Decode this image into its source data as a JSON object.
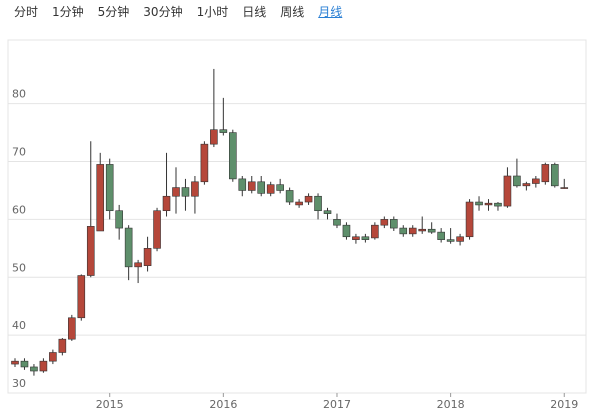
{
  "tabs": {
    "items": [
      "分时",
      "1分钟",
      "5分钟",
      "30分钟",
      "1小时",
      "日线",
      "周线",
      "月线"
    ],
    "active": 7
  },
  "chart_data": {
    "type": "candlestick",
    "categories": [
      null,
      null,
      null,
      null,
      null,
      null,
      null,
      null,
      null,
      null,
      "2015",
      null,
      null,
      null,
      null,
      null,
      null,
      null,
      null,
      null,
      null,
      null,
      "2016",
      null,
      null,
      null,
      null,
      null,
      null,
      null,
      null,
      null,
      null,
      null,
      "2017",
      null,
      null,
      null,
      null,
      null,
      null,
      null,
      null,
      null,
      null,
      null,
      "2018",
      null,
      null,
      null,
      null,
      null,
      null,
      null,
      null,
      null,
      null,
      null,
      "2019"
    ],
    "open": [
      35.0,
      35.5,
      34.5,
      33.8,
      35.5,
      37.0,
      39.3,
      43.0,
      50.3,
      58.0,
      69.5,
      61.5,
      58.5,
      51.8,
      52.0,
      55.0,
      61.5,
      64.0,
      65.5,
      64.0,
      66.5,
      73.0,
      75.5,
      75.0,
      67.0,
      65.0,
      66.5,
      64.5,
      66.0,
      65.0,
      62.5,
      63.0,
      64.0,
      61.5,
      60.0,
      59.0,
      56.5,
      57.0,
      56.8,
      59.0,
      60.0,
      58.5,
      57.5,
      58.0,
      58.3,
      57.8,
      56.5,
      56.2,
      57.0,
      63.0,
      62.5,
      62.8,
      62.3,
      67.5,
      65.8,
      66.2,
      66.5,
      69.5,
      65.5
    ],
    "high": [
      36.0,
      36.0,
      35.0,
      36.0,
      37.5,
      39.5,
      43.5,
      50.5,
      73.5,
      71.5,
      70.5,
      62.5,
      59.0,
      53.0,
      57.0,
      62.0,
      71.5,
      69.0,
      67.0,
      67.5,
      73.5,
      86.0,
      81.0,
      75.5,
      67.5,
      67.5,
      67.5,
      66.5,
      67.0,
      65.5,
      63.5,
      64.5,
      64.5,
      62.0,
      61.0,
      59.5,
      57.5,
      57.5,
      59.5,
      60.5,
      60.5,
      59.0,
      59.0,
      60.5,
      59.5,
      58.5,
      58.5,
      57.5,
      63.5,
      64.0,
      63.5,
      63.0,
      69.0,
      70.5,
      66.5,
      67.5,
      69.8,
      69.8,
      67.0
    ],
    "low": [
      34.5,
      34.0,
      33.0,
      33.5,
      35.0,
      36.5,
      39.0,
      42.5,
      50.0,
      58.0,
      60.0,
      56.5,
      49.5,
      49.0,
      51.0,
      54.5,
      60.5,
      61.0,
      61.5,
      61.0,
      66.0,
      72.5,
      74.5,
      66.5,
      64.0,
      64.5,
      64.0,
      64.0,
      64.5,
      62.5,
      62.0,
      62.5,
      60.0,
      60.0,
      58.5,
      56.5,
      55.8,
      56.0,
      56.5,
      58.5,
      58.0,
      57.0,
      57.0,
      57.5,
      57.5,
      56.0,
      55.8,
      55.5,
      56.5,
      61.5,
      61.5,
      61.5,
      62.0,
      65.5,
      65.0,
      65.5,
      66.0,
      65.5,
      65.3
    ],
    "close": [
      35.5,
      34.5,
      33.8,
      35.5,
      37.0,
      39.3,
      43.0,
      50.3,
      58.8,
      69.5,
      61.5,
      58.5,
      51.8,
      52.5,
      55.0,
      61.5,
      64.0,
      65.5,
      64.0,
      66.5,
      73.0,
      75.5,
      75.0,
      67.0,
      65.0,
      66.5,
      64.5,
      66.0,
      65.0,
      63.0,
      63.0,
      64.0,
      61.5,
      61.0,
      59.0,
      57.0,
      57.0,
      56.5,
      59.0,
      60.0,
      58.5,
      57.5,
      58.5,
      58.3,
      57.8,
      56.5,
      56.2,
      57.0,
      63.0,
      62.5,
      62.8,
      62.3,
      67.5,
      65.8,
      66.2,
      67.0,
      69.5,
      65.8,
      65.5
    ],
    "up_color": "#b5473a",
    "down_color": "#5e8f6b",
    "ylim": [
      30,
      91
    ],
    "yticks": [
      30,
      40,
      50,
      60,
      70,
      80
    ],
    "grid": true
  }
}
